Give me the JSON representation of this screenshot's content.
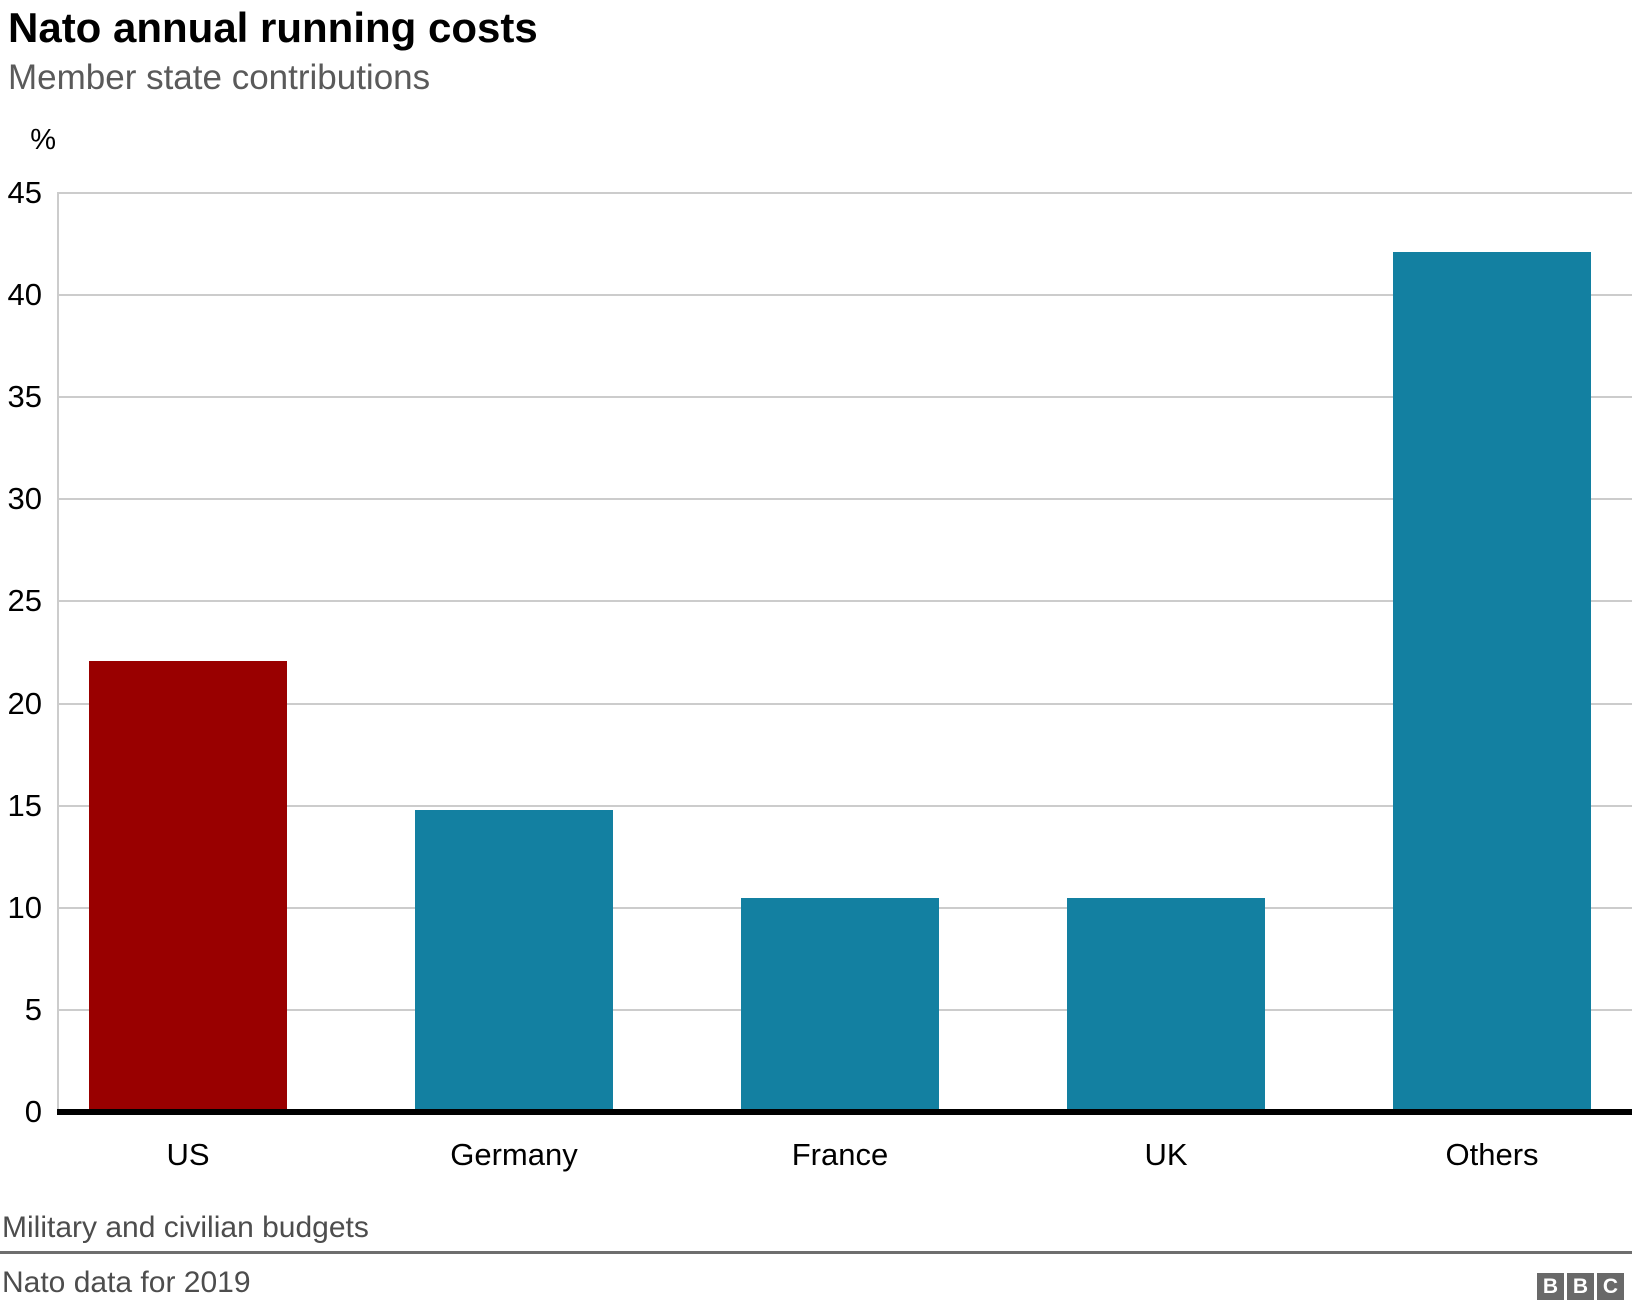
{
  "header": {
    "title": "Nato annual running costs",
    "subtitle": "Member state contributions"
  },
  "chart_data": {
    "type": "bar",
    "title": "Nato annual running costs",
    "subtitle": "Member state contributions",
    "unit_label": "%",
    "categories": [
      "US",
      "Germany",
      "France",
      "UK",
      "Others"
    ],
    "values": [
      22.1,
      14.8,
      10.5,
      10.5,
      42.1
    ],
    "bar_colors": [
      "#990000",
      "#1380a1",
      "#1380a1",
      "#1380a1",
      "#1380a1"
    ],
    "highlighted_category": "US",
    "xlabel": "",
    "ylabel": "%",
    "ylim": [
      0,
      45
    ],
    "ytick_step": 5,
    "grid": "horizontal",
    "legend": "none"
  },
  "footer": {
    "note": "Military and civilian budgets",
    "source": "Nato data for 2019",
    "logo": {
      "letters": [
        "B",
        "B",
        "C"
      ]
    }
  },
  "colors": {
    "bar_highlight": "#990000",
    "bar_default": "#1380a1",
    "gridline": "#cccccc",
    "axis_line": "#000000",
    "title_text": "#000000",
    "subtitle_text": "#5a5a5a",
    "tick_text": "#000000",
    "footer_text": "#4d4d4d",
    "divider": "#6e6e6e",
    "logo_block_bg": "#696969",
    "logo_letter": "#ffffff",
    "background": "#ffffff"
  }
}
